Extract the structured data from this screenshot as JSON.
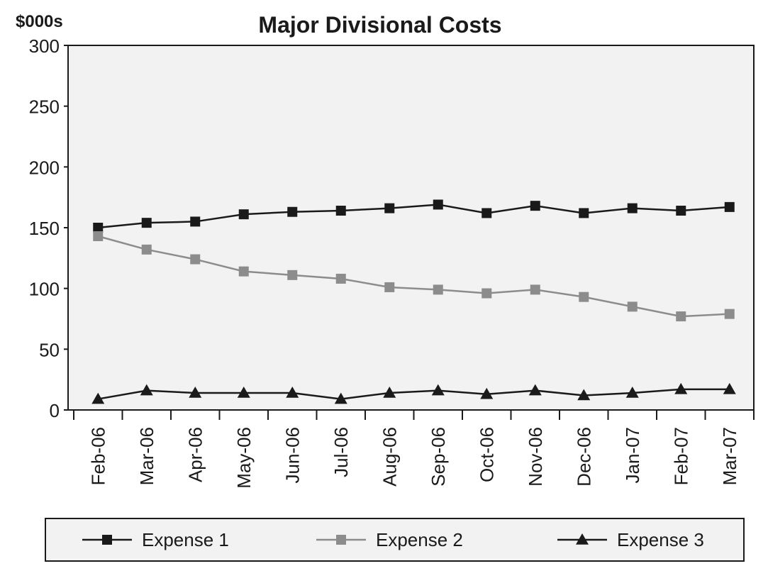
{
  "chart_data": {
    "type": "line",
    "title": "Major Divisional Costs",
    "ylabel": "$000s",
    "ylim": [
      0,
      300
    ],
    "yticks": [
      0,
      50,
      100,
      150,
      200,
      250,
      300
    ],
    "categories": [
      "Feb-06",
      "Mar-06",
      "Apr-06",
      "May-06",
      "Jun-06",
      "Jul-06",
      "Aug-06",
      "Sep-06",
      "Oct-06",
      "Nov-06",
      "Dec-06",
      "Jan-07",
      "Feb-07",
      "Mar-07"
    ],
    "grid": false,
    "legend_position": "bottom",
    "series": [
      {
        "name": "Expense 1",
        "color": "#1a1a1a",
        "marker": "square",
        "values": [
          150,
          154,
          155,
          161,
          163,
          164,
          166,
          169,
          162,
          168,
          162,
          166,
          164,
          167
        ]
      },
      {
        "name": "Expense 2",
        "color": "#8c8c8c",
        "marker": "square",
        "values": [
          143,
          132,
          124,
          114,
          111,
          108,
          101,
          99,
          96,
          99,
          93,
          85,
          77,
          79
        ]
      },
      {
        "name": "Expense 3",
        "color": "#1a1a1a",
        "marker": "triangle",
        "values": [
          9,
          16,
          14,
          14,
          14,
          9,
          14,
          16,
          13,
          16,
          12,
          14,
          17,
          17
        ]
      }
    ]
  }
}
